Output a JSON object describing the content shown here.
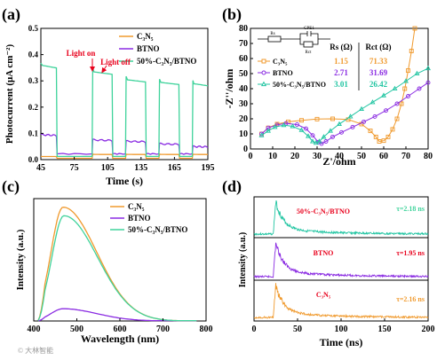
{
  "panels": {
    "a": {
      "label": "(a)"
    },
    "b": {
      "label": "(b)"
    },
    "c": {
      "label": "(c)"
    },
    "d": {
      "label": "(d)"
    }
  },
  "watermark": "© 大林智能",
  "colors": {
    "c3n5": "#f09a2e",
    "btno": "#8a2be2",
    "composite": "#3fd39b",
    "teal": "#21c5a2",
    "red": "#e8001c"
  },
  "chart_data": [
    {
      "panel": "a",
      "type": "line",
      "xlabel": "Time (s)",
      "ylabel": "Photocurrent (μA cm⁻²)",
      "xlim": [
        45,
        195
      ],
      "ylim": [
        0.0,
        0.5
      ],
      "xticks": [
        45,
        75,
        105,
        135,
        165,
        195
      ],
      "yticks": [
        0.0,
        0.1,
        0.2,
        0.3,
        0.4,
        0.5
      ],
      "legend": {
        "placement": "top-right",
        "entries": [
          "C3N5",
          "BTNO",
          "50%-C3N5/BTNO"
        ]
      },
      "annotations": [
        {
          "text": "Light on",
          "x": 91,
          "y": 0.33
        },
        {
          "text": "Light off",
          "x": 107,
          "y": 0.33
        }
      ],
      "on_intervals": [
        [
          45,
          59
        ],
        [
          91,
          109
        ],
        [
          121,
          139
        ],
        [
          151,
          169
        ],
        [
          181,
          195
        ]
      ],
      "series": [
        {
          "name": "C3N5",
          "color_key": "c3n5",
          "on_values": [
            0.012,
            0.02,
            0.02,
            0.02,
            0.02
          ],
          "off_value": 0.005
        },
        {
          "name": "BTNO",
          "color_key": "btno",
          "on_values": [
            0.095,
            0.075,
            0.07,
            0.06,
            0.05
          ],
          "off_value": 0.022
        },
        {
          "name": "50%-C3N5/BTNO",
          "color_key": "composite",
          "on_values": [
            0.36,
            0.335,
            0.305,
            0.295,
            0.29
          ],
          "off_value": 0.012
        }
      ]
    },
    {
      "panel": "b",
      "type": "scatter",
      "xlabel": "Z'/ohm",
      "ylabel": "-Z''/ohm",
      "xlim": [
        0,
        80
      ],
      "ylim": [
        0,
        80
      ],
      "xticks": [
        0,
        10,
        20,
        30,
        40,
        50,
        60,
        70,
        80
      ],
      "yticks": [
        0,
        10,
        20,
        30,
        40,
        50,
        60,
        70,
        80
      ],
      "circuit": {
        "labels": [
          "Rs",
          "CPE1",
          "Rct"
        ]
      },
      "table": {
        "headers": [
          "Rs (Ω)",
          "Rct (Ω)"
        ],
        "rows": [
          {
            "name": "C3N5",
            "rs": "1.15",
            "rct": "71.33",
            "color_key": "c3n5"
          },
          {
            "name": "BTNO",
            "rs": "2.71",
            "rct": "31.69",
            "color_key": "btno"
          },
          {
            "name": "50%-C3N5/BTNO",
            "rs": "3.01",
            "rct": "26.42",
            "color_key": "teal"
          }
        ]
      },
      "series": [
        {
          "name": "C3N5",
          "color_key": "c3n5",
          "marker": "square",
          "points": [
            [
              5,
              10
            ],
            [
              8,
              14
            ],
            [
              12,
              16.5
            ],
            [
              17,
              18
            ],
            [
              23,
              19
            ],
            [
              30,
              19.8
            ],
            [
              37,
              20
            ],
            [
              44,
              19.5
            ],
            [
              50,
              16.5
            ],
            [
              54,
              12
            ],
            [
              56.5,
              8
            ],
            [
              58,
              5
            ],
            [
              60,
              5.5
            ],
            [
              62,
              8
            ],
            [
              64,
              13
            ],
            [
              66,
              20
            ],
            [
              68,
              30
            ],
            [
              69.5,
              40
            ],
            [
              71,
              52
            ],
            [
              72.5,
              65
            ],
            [
              74,
              80
            ]
          ]
        },
        {
          "name": "BTNO",
          "color_key": "btno",
          "marker": "circle",
          "points": [
            [
              5,
              10
            ],
            [
              8,
              14
            ],
            [
              12,
              16
            ],
            [
              16,
              17
            ],
            [
              21,
              16.2
            ],
            [
              25,
              13.5
            ],
            [
              28,
              9
            ],
            [
              30.5,
              4.5
            ],
            [
              32,
              3.5
            ],
            [
              34,
              5
            ],
            [
              37,
              8
            ],
            [
              41,
              11
            ],
            [
              46,
              14.5
            ],
            [
              51,
              18
            ],
            [
              56,
              21.5
            ],
            [
              61,
              25.5
            ],
            [
              66,
              30
            ],
            [
              71,
              35
            ],
            [
              76,
              40
            ],
            [
              80,
              44
            ]
          ]
        },
        {
          "name": "50%-C3N5/BTNO",
          "color_key": "teal",
          "marker": "triangle",
          "points": [
            [
              5,
              9
            ],
            [
              8,
              12
            ],
            [
              11,
              14.5
            ],
            [
              15,
              15.8
            ],
            [
              19,
              15
            ],
            [
              23,
              12.5
            ],
            [
              26,
              8.5
            ],
            [
              28,
              5
            ],
            [
              29.5,
              4
            ],
            [
              31,
              5
            ],
            [
              33,
              8
            ],
            [
              36,
              12
            ],
            [
              40,
              16.5
            ],
            [
              45,
              21.5
            ],
            [
              50,
              26.5
            ],
            [
              55,
              31
            ],
            [
              60,
              35.5
            ],
            [
              65,
              40
            ],
            [
              70,
              45
            ],
            [
              75,
              50
            ],
            [
              80,
              53.5
            ]
          ]
        }
      ]
    },
    {
      "panel": "c",
      "type": "line",
      "xlabel": "Wavelength (nm)",
      "ylabel": "Intensity (a.u.)",
      "xlim": [
        400,
        800
      ],
      "ylim": [
        0,
        1
      ],
      "xticks": [
        400,
        500,
        600,
        700,
        800
      ],
      "yticks": [],
      "legend": {
        "placement": "top-right",
        "entries": [
          "C3N5",
          "BTNO",
          "50%-C3N5/BTNO"
        ]
      },
      "series": [
        {
          "name": "C3N5",
          "color_key": "c3n5",
          "peak_x": 468,
          "peak_y": 0.93
        },
        {
          "name": "BTNO",
          "color_key": "btno",
          "peak_x": 468,
          "peak_y": 0.1
        },
        {
          "name": "50%-C3N5/BTNO",
          "color_key": "composite",
          "peak_x": 470,
          "peak_y": 0.86
        }
      ]
    },
    {
      "panel": "d",
      "type": "line",
      "xlabel": "Time (ns)",
      "ylabel": "Intensity (a.u.)",
      "xlim": [
        0,
        200
      ],
      "xticks": [
        0,
        50,
        100,
        150,
        200
      ],
      "yticks": [],
      "stacked": [
        {
          "name": "50%-C3N5/BTNO",
          "color_key": "teal",
          "label_color_key": "red",
          "tau": "τ=2.18 ns",
          "tau_color_key": "composite"
        },
        {
          "name": "BTNO",
          "color_key": "btno",
          "label_color_key": "red",
          "tau": "τ=1.95 ns",
          "tau_color_key": "red"
        },
        {
          "name": "C3N5",
          "color_key": "c3n5",
          "label_color_key": "red",
          "tau": "τ=2.16 ns",
          "tau_color_key": "c3n5"
        }
      ]
    }
  ]
}
